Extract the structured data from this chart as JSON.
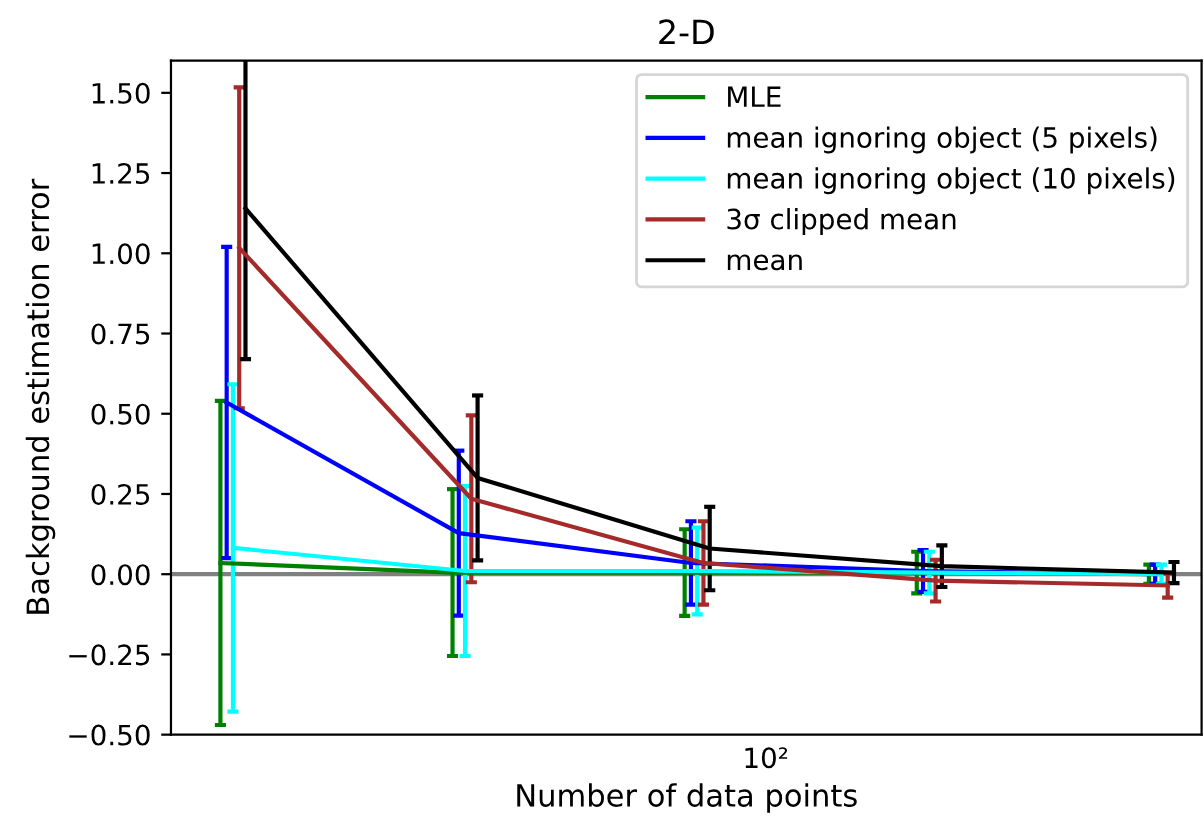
{
  "chart_data": {
    "type": "line",
    "title": "2-D",
    "xlabel": "Number of data points",
    "ylabel": "Background estimation error",
    "categories": [
      null,
      null,
      null,
      null,
      null
    ],
    "annotations": [
      "10²"
    ],
    "ylim": [
      -0.5,
      1.6
    ],
    "yticks": [
      {
        "value": -0.5,
        "label": "−0.50"
      },
      {
        "value": -0.25,
        "label": "−0.25"
      },
      {
        "value": 0,
        "label": "0.00"
      },
      {
        "value": 0.25,
        "label": "0.25"
      },
      {
        "value": 0.5,
        "label": "0.50"
      },
      {
        "value": 0.75,
        "label": "0.75"
      },
      {
        "value": 1.0,
        "label": "1.00"
      },
      {
        "value": 1.25,
        "label": "1.25"
      },
      {
        "value": 1.5,
        "label": "1.50"
      }
    ],
    "legend": "top right",
    "marker": "none",
    "ref_lines": [
      {
        "axis": "y",
        "value": 0,
        "color": "#808080"
      }
    ],
    "series": [
      {
        "name": "MLE",
        "color": "#008000",
        "values": [
          0.035,
          0.005,
          0.005,
          0.005,
          0.0
        ],
        "errors": [
          0.505,
          0.26,
          0.135,
          0.065,
          0.03
        ]
      },
      {
        "name": "mean ignoring object (5 pixels)",
        "color": "#0000ff",
        "values": [
          0.535,
          0.128,
          0.035,
          0.01,
          0.0
        ],
        "errors": [
          0.485,
          0.257,
          0.13,
          0.065,
          0.03
        ]
      },
      {
        "name": "mean ignoring object (10 pixels)",
        "color": "#00ffff",
        "values": [
          0.082,
          0.01,
          0.01,
          0.005,
          0.0
        ],
        "errors": [
          0.51,
          0.265,
          0.135,
          0.065,
          0.03
        ]
      },
      {
        "name": "3σ clipped mean",
        "color": "#a52a2a",
        "values": [
          1.017,
          0.235,
          0.035,
          -0.02,
          -0.035
        ],
        "errors": [
          0.5,
          0.26,
          0.13,
          0.065,
          0.038
        ]
      },
      {
        "name": "mean",
        "color": "#000000",
        "values": [
          1.14,
          0.3,
          0.08,
          0.025,
          0.005
        ],
        "errors": [
          0.47,
          0.257,
          0.13,
          0.065,
          0.033
        ]
      }
    ]
  }
}
